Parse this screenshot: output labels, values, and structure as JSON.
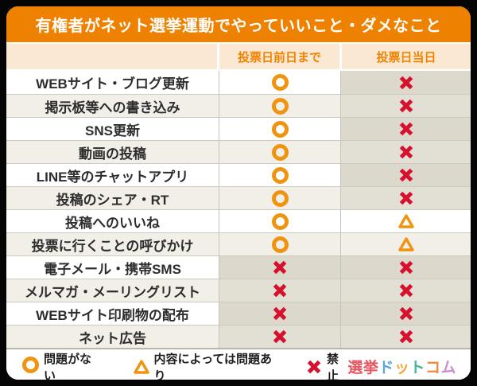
{
  "title": "有権者がネット選挙運動でやっていいこと・ダメなこと",
  "table": {
    "columns": [
      "",
      "投票日前日まで",
      "投票日当日"
    ],
    "rows": [
      {
        "label": "WEBサイト・ブログ更新",
        "before": "circle",
        "day": "cross"
      },
      {
        "label": "掲示板等への書き込み",
        "before": "circle",
        "day": "cross"
      },
      {
        "label": "SNS更新",
        "before": "circle",
        "day": "cross"
      },
      {
        "label": "動画の投稿",
        "before": "circle",
        "day": "cross"
      },
      {
        "label": "LINE等のチャットアプリ",
        "before": "circle",
        "day": "cross"
      },
      {
        "label": "投稿のシェア・RT",
        "before": "circle",
        "day": "cross"
      },
      {
        "label": "投稿へのいいね",
        "before": "circle",
        "day": "triangle"
      },
      {
        "label": "投票に行くことの呼びかけ",
        "before": "circle",
        "day": "triangle"
      },
      {
        "label": "電子メール・携帯SMS",
        "before": "cross",
        "day": "cross"
      },
      {
        "label": "メルマガ・メーリングリスト",
        "before": "cross",
        "day": "cross"
      },
      {
        "label": "WEBサイト印刷物の配布",
        "before": "cross",
        "day": "cross"
      },
      {
        "label": "ネット広告",
        "before": "cross",
        "day": "cross"
      }
    ]
  },
  "legend": {
    "items": [
      {
        "symbol": "circle",
        "label": "問題がない"
      },
      {
        "symbol": "triangle",
        "label": "内容によっては問題あり"
      },
      {
        "symbol": "cross",
        "label": "禁止"
      }
    ]
  },
  "logo": {
    "text": "選挙ドットコム",
    "chars": [
      {
        "char": "選",
        "color": "#e8545f"
      },
      {
        "char": "挙",
        "color": "#e8545f"
      },
      {
        "char": "ド",
        "color": "#57a7da"
      },
      {
        "char": "ッ",
        "color": "#f4a636"
      },
      {
        "char": "ト",
        "color": "#44b79b"
      },
      {
        "char": "コ",
        "color": "#f0883c"
      },
      {
        "char": "ム",
        "color": "#ca8fd0"
      }
    ]
  },
  "colors": {
    "header_bg": "#ee8200",
    "header_text": "#ffffff",
    "col_header_bg": "#fbe8d3",
    "col_header_text": "#f08300",
    "row_bg": "#ffffff",
    "row_alt_bg": "#f2efe9",
    "cross_cell_bg": "#dcd8cc",
    "cross_cell_bg_alt": "#e2dfd5",
    "circle_color": "#f0930f",
    "triangle_color": "#f0930f",
    "cross_color": "#d6102d",
    "label_text": "#2d2d2d"
  },
  "chart_data": {
    "type": "table",
    "title": "有権者がネット選挙運動でやっていいこと・ダメなこと",
    "columns": [
      "",
      "投票日前日まで",
      "投票日当日"
    ],
    "rows": [
      [
        "WEBサイト・ブログ更新",
        "○",
        "×"
      ],
      [
        "掲示板等への書き込み",
        "○",
        "×"
      ],
      [
        "SNS更新",
        "○",
        "×"
      ],
      [
        "動画の投稿",
        "○",
        "×"
      ],
      [
        "LINE等のチャットアプリ",
        "○",
        "×"
      ],
      [
        "投稿のシェア・RT",
        "○",
        "×"
      ],
      [
        "投稿へのいいね",
        "○",
        "△"
      ],
      [
        "投票に行くことの呼びかけ",
        "○",
        "△"
      ],
      [
        "電子メール・携帯SMS",
        "×",
        "×"
      ],
      [
        "メルマガ・メーリングリスト",
        "×",
        "×"
      ],
      [
        "WEBサイト印刷物の配布",
        "×",
        "×"
      ],
      [
        "ネット広告",
        "×",
        "×"
      ]
    ],
    "legend": [
      "○ = 問題がない",
      "△ = 内容によっては問題あり",
      "× = 禁止"
    ],
    "legend_position": "bottom"
  }
}
